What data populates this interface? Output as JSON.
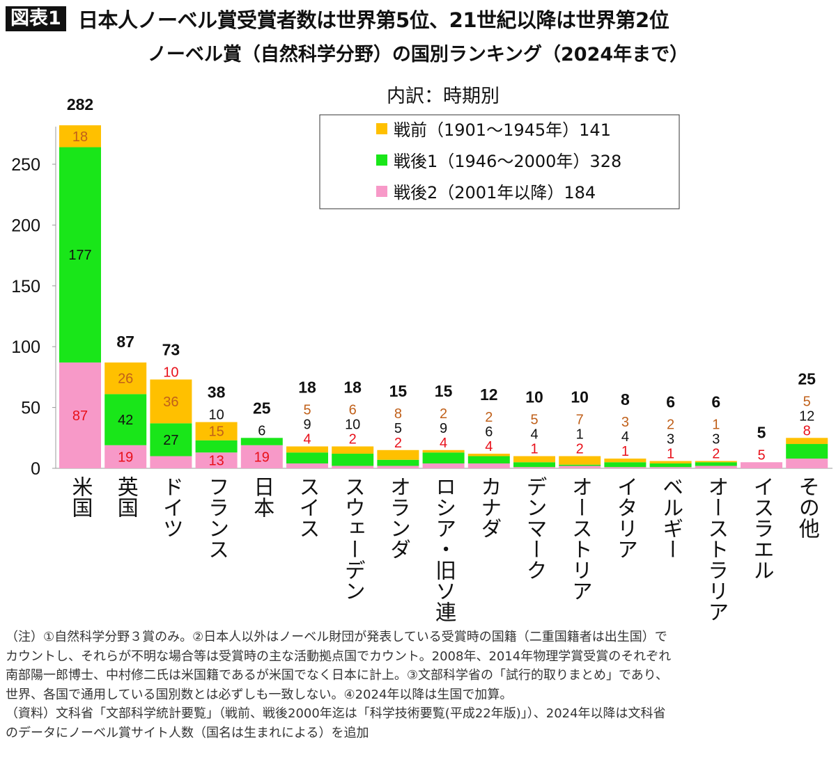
{
  "header": {
    "badge": "図表1",
    "title": "日本人ノーベル賞受賞者数は世界第5位、21世紀以降は世界第2位",
    "subtitle": "ノーベル賞（自然科学分野）の国別ランキング（2024年まで）"
  },
  "chart_data": {
    "type": "bar",
    "stacked": true,
    "title": "ノーベル賞（自然科学分野）の国別ランキング（2024年まで）",
    "legend_title": "内訳：時期別",
    "legend_position": "top-right",
    "ylim": [
      0,
      282
    ],
    "yticks": [
      "0",
      "50",
      "100",
      "150",
      "200",
      "250"
    ],
    "grid": false,
    "categories": [
      "米国",
      "英国",
      "ドイツ",
      "フランス",
      "日本",
      "スイス",
      "スウェーデン",
      "オランダ",
      "ロシア・旧ソ連",
      "カナダ",
      "デンマーク",
      "オーストリア",
      "イタリア",
      "ベルギー",
      "オーストラリア",
      "イスラエル",
      "その他"
    ],
    "totals": [
      282,
      87,
      73,
      38,
      25,
      18,
      18,
      15,
      15,
      12,
      10,
      10,
      8,
      6,
      6,
      5,
      25
    ],
    "series": [
      {
        "name": "戦後2（2001年以降）184",
        "color": "#F799C8",
        "label_color": "#E8101A",
        "values": [
          87,
          19,
          10,
          13,
          19,
          4,
          2,
          2,
          4,
          4,
          1,
          2,
          1,
          1,
          2,
          5,
          8
        ]
      },
      {
        "name": "戦後1（1946〜2000年）328",
        "color": "#19E619",
        "label_color": "#111111",
        "values": [
          177,
          42,
          27,
          10,
          6,
          9,
          10,
          5,
          9,
          6,
          4,
          1,
          4,
          3,
          3,
          0,
          12
        ]
      },
      {
        "name": "戦前（1901〜1945年）141",
        "color": "#FFC000",
        "label_color": "#C0601A",
        "values": [
          18,
          26,
          36,
          15,
          0,
          5,
          6,
          8,
          2,
          2,
          5,
          7,
          3,
          2,
          1,
          0,
          5
        ]
      }
    ]
  },
  "notes": [
    "（注）①自然科学分野３賞のみ。②日本人以外はノーベル財団が発表している受賞時の国籍（二重国籍者は出生国）で",
    "カウントし、それらが不明な場合等は受賞時の主な活動拠点国でカウント。2008年、2014年物理学賞受賞のそれぞれ",
    "南部陽一郎博士、中村修二氏は米国籍であるが米国でなく日本に計上。③文部科学省の「試行的取りまとめ」であり、",
    "世界、各国で通用している国別数とは必ずしも一致しない。④2024年以降は生国で加算。",
    "（資料）文科省「文部科学統計要覧」（戦前、戦後2000年迄は「科学技術要覧(平成22年版)」）、2024年以降は文科省",
    "のデータにノーベル賞サイト人数（国名は生まれによる）を追加"
  ]
}
